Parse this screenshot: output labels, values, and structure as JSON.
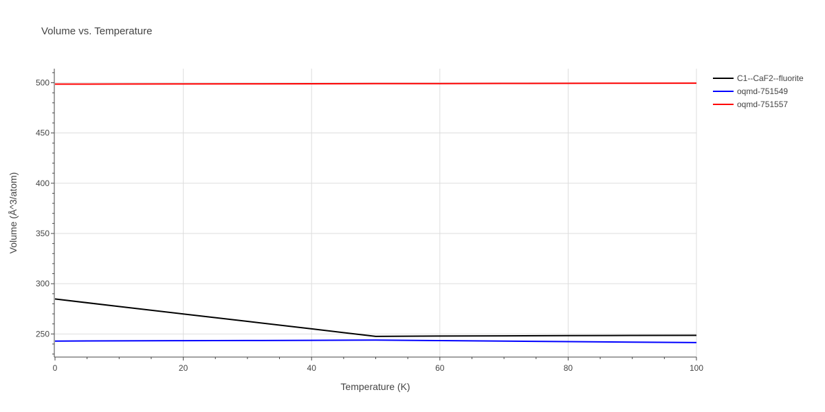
{
  "chart_data": {
    "type": "line",
    "title": "Volume vs. Temperature",
    "xlabel": "Temperature (K)",
    "ylabel": "Volume (Å^3/atom)",
    "xlim": [
      0,
      100
    ],
    "ylim": [
      227,
      514
    ],
    "x_ticks": [
      0,
      20,
      40,
      60,
      80,
      100
    ],
    "y_ticks": [
      250,
      300,
      350,
      400,
      450,
      500
    ],
    "grid": true,
    "legend_position": "top-right",
    "series": [
      {
        "name": "C1--CaF2--fluorite",
        "color": "#000000",
        "x": [
          0,
          10,
          20,
          30,
          40,
          50,
          60,
          70,
          80,
          90,
          100
        ],
        "values": [
          284.8,
          277.3,
          269.9,
          262.5,
          255.1,
          247.6,
          247.9,
          248.1,
          248.3,
          248.5,
          248.6
        ]
      },
      {
        "name": "oqmd-751549",
        "color": "#0000ff",
        "x": [
          0,
          10,
          20,
          30,
          40,
          50,
          60,
          70,
          80,
          90,
          100
        ],
        "values": [
          242.9,
          243.1,
          243.3,
          243.5,
          243.7,
          243.9,
          243.4,
          242.9,
          242.4,
          241.9,
          241.4
        ]
      },
      {
        "name": "oqmd-751557",
        "color": "#ff0000",
        "x": [
          0,
          10,
          20,
          30,
          40,
          50,
          60,
          70,
          80,
          90,
          100
        ],
        "values": [
          498.6,
          498.7,
          498.8,
          498.9,
          499.0,
          499.1,
          499.2,
          499.3,
          499.4,
          499.5,
          499.6
        ]
      }
    ]
  }
}
